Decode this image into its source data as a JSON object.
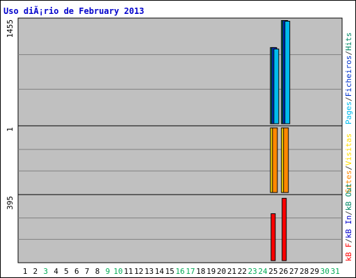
{
  "colors": {
    "background": "#ffffff",
    "plot_bg": "#c0c0c0",
    "gridline": "#808080",
    "title": "#0000cc",
    "pages": "#00bbee",
    "files": "#0033cc",
    "hits": "#008866",
    "visits": "#ffdd00",
    "sites": "#ff8800",
    "kb_in": "#0000cc",
    "kb_out": "#008866",
    "kb_f": "#ff0000",
    "weekend_day": "#00aa55",
    "weekday": "#000000",
    "separator": "#404040"
  },
  "chart_data": [
    {
      "type": "bar",
      "panel": "top",
      "title": "Uso diÃ¡rio de February 2013",
      "y_tick_label": "1455",
      "ylim": [
        0,
        1455
      ],
      "grid": true,
      "legend_placement": "right-vertical",
      "legend": [
        "Pages",
        "/",
        "Ficheiros",
        "/",
        "Hits"
      ],
      "categories": [
        "1",
        "2",
        "3",
        "4",
        "5",
        "6",
        "7",
        "8",
        "9",
        "10",
        "11",
        "12",
        "13",
        "14",
        "15",
        "16",
        "17",
        "18",
        "19",
        "20",
        "21",
        "22",
        "23",
        "24",
        "25",
        "26",
        "27",
        "28",
        "29",
        "30",
        "31"
      ],
      "series": [
        {
          "name": "Hits",
          "color": "#008866",
          "values": [
            0,
            0,
            0,
            0,
            0,
            0,
            0,
            0,
            0,
            0,
            0,
            0,
            0,
            0,
            0,
            0,
            0,
            0,
            0,
            0,
            0,
            0,
            0,
            0,
            1070,
            1450,
            0,
            0,
            0,
            0,
            0
          ]
        },
        {
          "name": "Ficheiros",
          "color": "#0033cc",
          "values": [
            0,
            0,
            0,
            0,
            0,
            0,
            0,
            0,
            0,
            0,
            0,
            0,
            0,
            0,
            0,
            0,
            0,
            0,
            0,
            0,
            0,
            0,
            0,
            0,
            1070,
            1450,
            0,
            0,
            0,
            0,
            0
          ]
        },
        {
          "name": "Pages",
          "color": "#00bbee",
          "values": [
            0,
            0,
            0,
            0,
            0,
            0,
            0,
            0,
            0,
            0,
            0,
            0,
            0,
            0,
            0,
            0,
            0,
            0,
            0,
            0,
            0,
            0,
            0,
            0,
            1050,
            1440,
            0,
            0,
            0,
            0,
            0
          ]
        }
      ]
    },
    {
      "type": "bar",
      "panel": "middle",
      "y_tick_label": "1",
      "ylim": [
        0,
        1
      ],
      "grid": true,
      "legend": [
        "Sites",
        "/",
        "Visitas"
      ],
      "categories": [
        "1",
        "2",
        "3",
        "4",
        "5",
        "6",
        "7",
        "8",
        "9",
        "10",
        "11",
        "12",
        "13",
        "14",
        "15",
        "16",
        "17",
        "18",
        "19",
        "20",
        "21",
        "22",
        "23",
        "24",
        "25",
        "26",
        "27",
        "28",
        "29",
        "30",
        "31"
      ],
      "series": [
        {
          "name": "Visitas",
          "color": "#ffdd00",
          "values": [
            0,
            0,
            0,
            0,
            0,
            0,
            0,
            0,
            0,
            0,
            0,
            0,
            0,
            0,
            0,
            0,
            0,
            0,
            0,
            0,
            0,
            0,
            0,
            0,
            1,
            1,
            0,
            0,
            0,
            0,
            0
          ]
        },
        {
          "name": "Sites",
          "color": "#ff8800",
          "values": [
            0,
            0,
            0,
            0,
            0,
            0,
            0,
            0,
            0,
            0,
            0,
            0,
            0,
            0,
            0,
            0,
            0,
            0,
            0,
            0,
            0,
            0,
            0,
            0,
            1,
            1,
            0,
            0,
            0,
            0,
            0
          ]
        }
      ]
    },
    {
      "type": "bar",
      "panel": "bottom",
      "y_tick_label": "395",
      "ylim": [
        0,
        395
      ],
      "grid": true,
      "legend": [
        "kB F",
        "/",
        "kB In",
        "/",
        "kB Out"
      ],
      "categories": [
        "1",
        "2",
        "3",
        "4",
        "5",
        "6",
        "7",
        "8",
        "9",
        "10",
        "11",
        "12",
        "13",
        "14",
        "15",
        "16",
        "17",
        "18",
        "19",
        "20",
        "21",
        "22",
        "23",
        "24",
        "25",
        "26",
        "27",
        "28",
        "29",
        "30",
        "31"
      ],
      "series": [
        {
          "name": "kB F",
          "color": "#ff0000",
          "values": [
            0,
            0,
            0,
            0,
            0,
            0,
            0,
            0,
            0,
            0,
            0,
            0,
            0,
            0,
            0,
            0,
            0,
            0,
            0,
            0,
            0,
            0,
            0,
            0,
            290,
            385,
            0,
            0,
            0,
            0,
            0
          ]
        }
      ]
    }
  ],
  "x_labels": [
    {
      "text": "1",
      "weekend": false
    },
    {
      "text": "2",
      "weekend": false
    },
    {
      "text": "3",
      "weekend": true
    },
    {
      "text": "4",
      "weekend": false
    },
    {
      "text": "5",
      "weekend": false
    },
    {
      "text": "6",
      "weekend": false
    },
    {
      "text": "7",
      "weekend": false
    },
    {
      "text": "8",
      "weekend": false
    },
    {
      "text": "9",
      "weekend": true
    },
    {
      "text": "10",
      "weekend": true
    },
    {
      "text": "11",
      "weekend": false
    },
    {
      "text": "12",
      "weekend": false
    },
    {
      "text": "13",
      "weekend": false
    },
    {
      "text": "14",
      "weekend": false
    },
    {
      "text": "15",
      "weekend": false
    },
    {
      "text": "16",
      "weekend": true
    },
    {
      "text": "17",
      "weekend": true
    },
    {
      "text": "18",
      "weekend": false
    },
    {
      "text": "19",
      "weekend": false
    },
    {
      "text": "20",
      "weekend": false
    },
    {
      "text": "21",
      "weekend": false
    },
    {
      "text": "22",
      "weekend": false
    },
    {
      "text": "23",
      "weekend": true
    },
    {
      "text": "24",
      "weekend": true
    },
    {
      "text": "25",
      "weekend": false
    },
    {
      "text": "26",
      "weekend": false
    },
    {
      "text": "27",
      "weekend": false
    },
    {
      "text": "28",
      "weekend": false
    },
    {
      "text": "29",
      "weekend": false
    },
    {
      "text": "30",
      "weekend": true
    },
    {
      "text": "31",
      "weekend": true
    }
  ],
  "legend_text": {
    "top": [
      {
        "text": "Pages",
        "key": "pages"
      },
      {
        "text": "/",
        "key": "separator"
      },
      {
        "text": "Ficheiros",
        "key": "files"
      },
      {
        "text": "/",
        "key": "separator"
      },
      {
        "text": "Hits",
        "key": "hits"
      }
    ],
    "middle": [
      {
        "text": "Sites",
        "key": "sites"
      },
      {
        "text": "/",
        "key": "separator"
      },
      {
        "text": "Visitas",
        "key": "visits"
      }
    ],
    "bottom": [
      {
        "text": "kB F",
        "key": "kb_f"
      },
      {
        "text": "/",
        "key": "separator"
      },
      {
        "text": "kB In",
        "key": "kb_in"
      },
      {
        "text": "/",
        "key": "separator"
      },
      {
        "text": "kB Out",
        "key": "kb_out"
      }
    ]
  }
}
